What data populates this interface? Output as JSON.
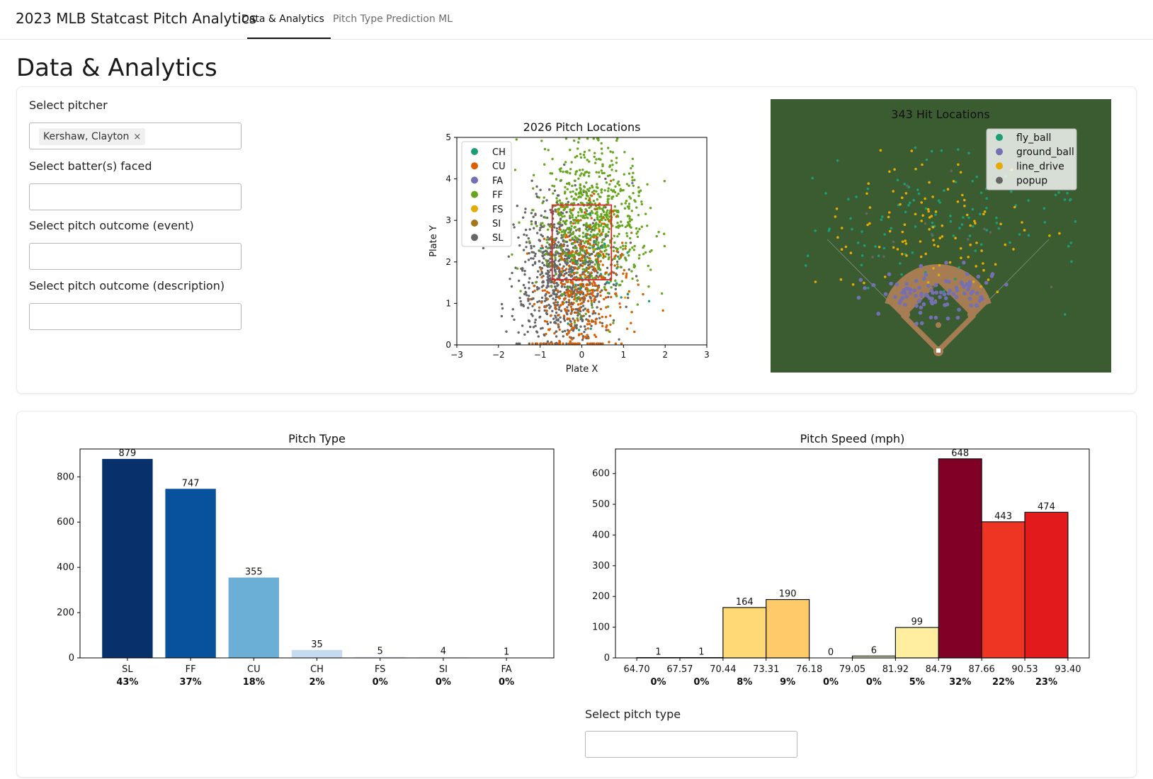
{
  "app": {
    "title": "2023 MLB Statcast Pitch Analytics",
    "tabs": [
      {
        "label": "Data & Analytics",
        "active": true
      },
      {
        "label": "Pitch Type Prediction ML",
        "active": false
      }
    ]
  },
  "page_title": "Data & Analytics",
  "filters": {
    "pitcher": {
      "label": "Select pitcher",
      "selected": "Kershaw, Clayton",
      "remove_glyph": "×"
    },
    "batters": {
      "label": "Select batter(s) faced",
      "value": ""
    },
    "event": {
      "label": "Select pitch outcome (event)",
      "value": ""
    },
    "description": {
      "label": "Select pitch outcome (description)",
      "value": ""
    },
    "pitch_type": {
      "label": "Select pitch type",
      "value": ""
    }
  },
  "colors": {
    "CH": "#1b9e77",
    "CU": "#d95f02",
    "FA": "#7570b3",
    "FF": "#66a61e",
    "FS": "#e6ab02",
    "SI": "#a6761d",
    "SL": "#666666",
    "field_bg": "#3b5b31",
    "infield": "#a67c52",
    "strike_zone": "#d62728",
    "pitch_type_bars": [
      "#08306b",
      "#08519c",
      "#6baed6",
      "#c6dbef",
      "#deebf7",
      "#eef4fb",
      "#f7fbff"
    ],
    "speed_bars": [
      "#ffffcc",
      "#ffffcc",
      "#fed976",
      "#feca6a",
      "#ffffcc",
      "#ffffcc",
      "#ffeda0",
      "#800026",
      "#ee3524",
      "#e31a1c"
    ]
  },
  "chart_data": [
    {
      "type": "scatter",
      "title": "2026 Pitch Locations",
      "xlabel": "Plate X",
      "ylabel": "Plate Y",
      "xlim": [
        -3,
        3
      ],
      "ylim": [
        0,
        5
      ],
      "xticks": [
        "−3",
        "−2",
        "−1",
        "0",
        "1",
        "2",
        "3"
      ],
      "yticks": [
        "0",
        "1",
        "2",
        "3",
        "4",
        "5"
      ],
      "legend": [
        "CH",
        "CU",
        "FA",
        "FF",
        "FS",
        "SI",
        "SL"
      ],
      "legend_position": "top-left",
      "strike_zone": {
        "x": [
          -0.71,
          0.71
        ],
        "y": [
          1.57,
          3.37
        ]
      },
      "point_count": 2026
    },
    {
      "type": "scatter",
      "title": "343 Hit Locations",
      "legend": [
        "fly_ball",
        "ground_ball",
        "line_drive",
        "popup"
      ],
      "legend_colors": [
        "#1b9e77",
        "#7570b3",
        "#e6ab02",
        "#666666"
      ],
      "legend_position": "top-right",
      "point_count": 343
    },
    {
      "type": "bar",
      "title": "Pitch Type",
      "categories": [
        "SL",
        "FF",
        "CU",
        "CH",
        "FS",
        "SI",
        "FA"
      ],
      "values": [
        879,
        747,
        355,
        35,
        5,
        4,
        1
      ],
      "percent_labels": [
        "43%",
        "37%",
        "18%",
        "2%",
        "0%",
        "0%",
        "0%"
      ],
      "yticks": [
        0,
        200,
        400,
        600,
        800
      ],
      "ylim": [
        0,
        923
      ]
    },
    {
      "type": "bar",
      "title": "Pitch Speed (mph)",
      "bin_edges": [
        "64.70",
        "67.57",
        "70.44",
        "73.31",
        "76.18",
        "79.05",
        "81.92",
        "84.79",
        "87.66",
        "90.53",
        "93.40"
      ],
      "values": [
        1,
        1,
        164,
        190,
        0,
        6,
        99,
        648,
        443,
        474
      ],
      "percent_labels": [
        "0%",
        "0%",
        "8%",
        "9%",
        "0%",
        "0%",
        "5%",
        "32%",
        "22%",
        "23%"
      ],
      "yticks": [
        0,
        100,
        200,
        300,
        400,
        500,
        600
      ],
      "ylim": [
        0,
        680
      ]
    }
  ]
}
